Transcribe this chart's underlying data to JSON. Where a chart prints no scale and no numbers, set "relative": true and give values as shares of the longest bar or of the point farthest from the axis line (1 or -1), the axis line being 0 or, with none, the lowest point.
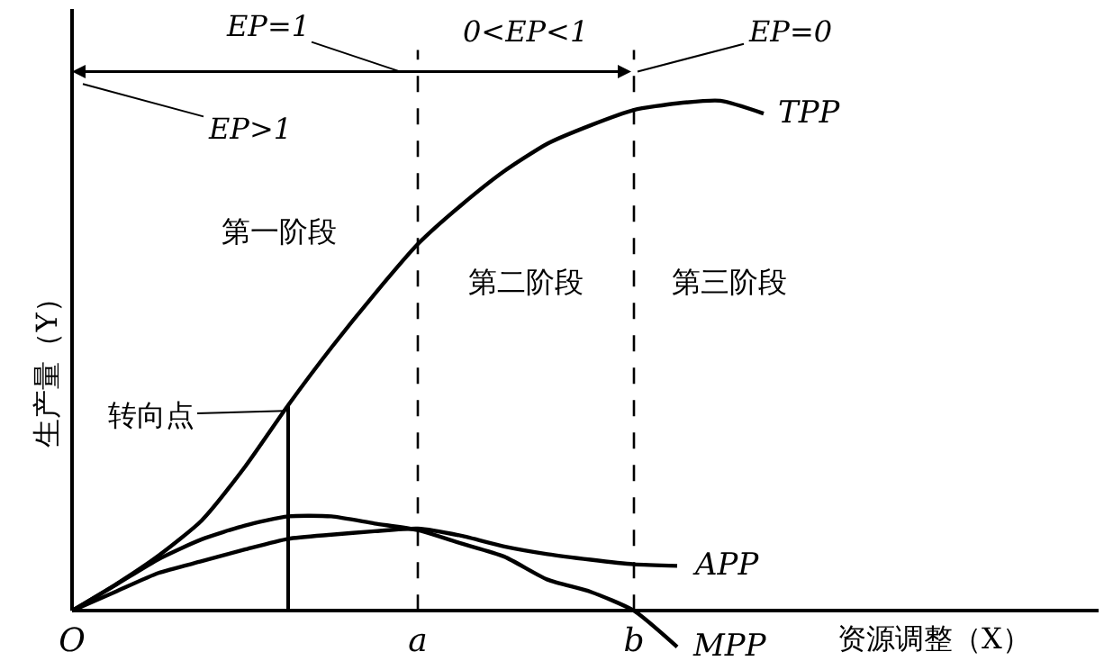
{
  "chart_data": {
    "type": "line",
    "relative": true,
    "xlabel": "资源调整（X）",
    "ylabel": "生产量（Y）",
    "categories": [
      "O",
      null,
      null,
      null,
      null,
      null,
      null,
      null,
      "a",
      null,
      null,
      null,
      null,
      "b",
      null,
      null,
      null,
      null,
      null,
      null,
      null,
      null,
      null,
      null
    ],
    "series": [
      {
        "name": "TPP",
        "color": "#000000",
        "values": [
          0,
          0.051,
          0.108,
          0.177,
          0.282,
          0.403,
          0.516,
          0.621,
          0.719,
          0.795,
          0.862,
          0.916,
          0.952,
          0.982,
          0.995,
          1,
          0.975,
          null,
          null,
          null,
          null,
          null,
          null,
          null
        ]
      },
      {
        "name": "APP",
        "color": "#000000",
        "values": [
          0,
          0.037,
          0.074,
          0.097,
          0.12,
          0.141,
          0.149,
          0.156,
          0.161,
          0.147,
          0.126,
          0.111,
          0.1,
          0.091,
          0.088,
          null,
          null,
          null,
          null,
          null,
          null,
          null,
          null,
          null
        ]
      },
      {
        "name": "MPP",
        "color": "#000000",
        "values": [
          0,
          0.05,
          0.101,
          0.14,
          0.167,
          0.185,
          0.185,
          0.171,
          0.158,
          0.132,
          0.106,
          0.061,
          0.037,
          0,
          -0.071,
          null,
          null,
          null,
          null,
          null,
          null,
          null,
          null,
          null
        ]
      },
      {
        "type": "bar",
        "color": "#000000",
        "values": [
          null,
          null,
          null,
          null,
          null,
          0.403,
          null,
          null,
          null,
          null,
          null,
          null,
          null,
          null,
          null,
          null,
          null,
          null,
          null,
          null,
          null,
          null,
          null,
          null
        ]
      }
    ],
    "ref_lines": [
      {
        "axis": "x",
        "value": "a",
        "line_style": "dashed",
        "color": "#000000"
      },
      {
        "axis": "x",
        "value": "b",
        "line_style": "dashed",
        "color": "#000000"
      }
    ],
    "annotations": [
      "第一阶段",
      "第二阶段",
      "第三阶段",
      "转向点",
      "EP=1",
      "0<EP<1",
      "EP=0",
      "EP>1"
    ],
    "legend": false,
    "marker": "none",
    "line_style": "solid"
  }
}
